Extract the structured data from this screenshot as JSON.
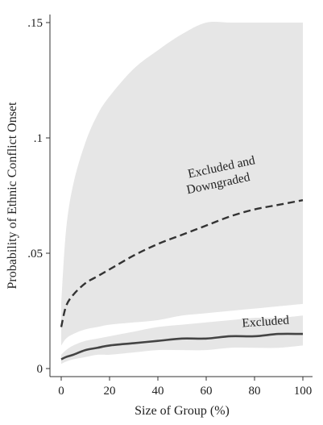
{
  "chart_data": {
    "type": "line",
    "title": "",
    "xlabel": "Size of Group (%)",
    "ylabel": "Probability of Ethnic Conflict Onset",
    "xlim": [
      0,
      100
    ],
    "ylim": [
      0,
      0.15
    ],
    "x_ticks": [
      0,
      20,
      40,
      60,
      80,
      100
    ],
    "x_tick_labels": [
      "0",
      "20",
      "40",
      "60",
      "80",
      "100"
    ],
    "y_ticks": [
      0,
      0.05,
      0.1,
      0.15
    ],
    "y_tick_labels": [
      "0",
      ".05",
      ".1",
      ".15"
    ],
    "grid": false,
    "legend": "none",
    "x": [
      0,
      2,
      5,
      10,
      15,
      20,
      30,
      40,
      50,
      60,
      70,
      80,
      90,
      100
    ],
    "series": [
      {
        "name": "Excluded and Downgraded",
        "style": "dashed",
        "color": "#333333",
        "values": [
          0.018,
          0.027,
          0.032,
          0.037,
          0.04,
          0.043,
          0.049,
          0.054,
          0.058,
          0.062,
          0.066,
          0.069,
          0.071,
          0.073
        ],
        "ci_lower": [
          0.01,
          0.013,
          0.015,
          0.017,
          0.018,
          0.019,
          0.02,
          0.021,
          0.023,
          0.024,
          0.025,
          0.026,
          0.027,
          0.028
        ],
        "ci_upper": [
          0.028,
          0.06,
          0.08,
          0.098,
          0.11,
          0.118,
          0.13,
          0.138,
          0.145,
          0.15,
          0.15,
          0.15,
          0.15,
          0.15
        ],
        "ci_color": "#e6e6e6"
      },
      {
        "name": "Excluded",
        "style": "solid",
        "color": "#444444",
        "values": [
          0.004,
          0.005,
          0.006,
          0.008,
          0.009,
          0.01,
          0.011,
          0.012,
          0.013,
          0.013,
          0.014,
          0.014,
          0.015,
          0.015
        ],
        "ci_lower": [
          0.002,
          0.003,
          0.004,
          0.005,
          0.006,
          0.006,
          0.007,
          0.008,
          0.008,
          0.008,
          0.009,
          0.009,
          0.009,
          0.01
        ],
        "ci_upper": [
          0.006,
          0.008,
          0.01,
          0.012,
          0.013,
          0.014,
          0.016,
          0.018,
          0.019,
          0.02,
          0.021,
          0.022,
          0.022,
          0.023
        ],
        "ci_color": "#e6e6e6"
      }
    ],
    "annotations": [
      {
        "line1": "Excluded and",
        "line2": "Downgraded",
        "x": 52,
        "y": 0.082
      },
      {
        "line1": "Excluded",
        "x": 80,
        "y": 0.018
      }
    ]
  }
}
